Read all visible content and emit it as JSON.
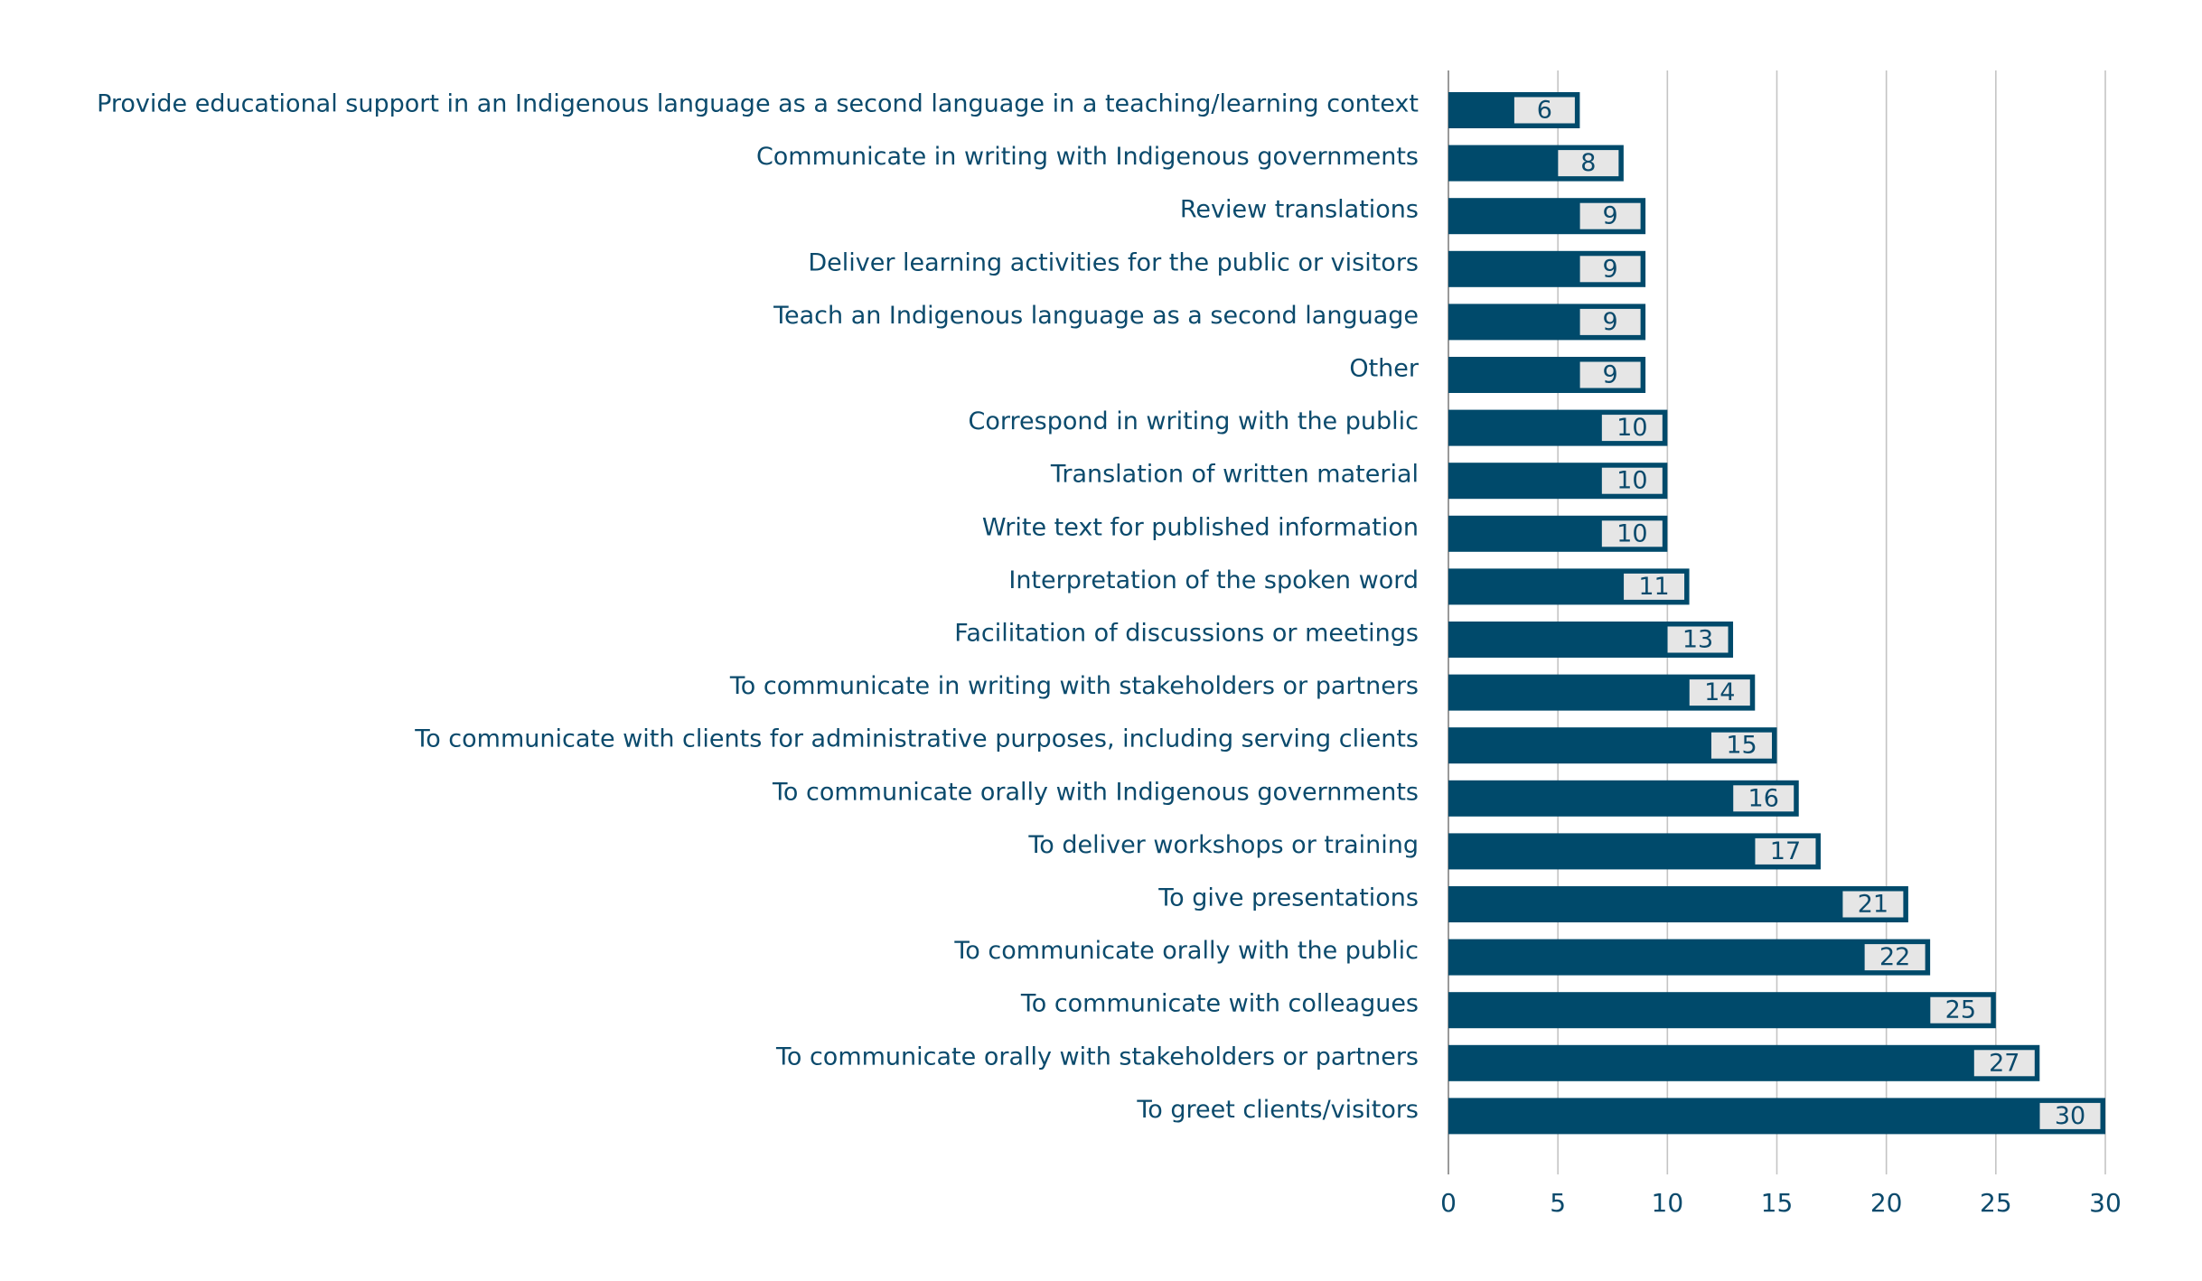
{
  "chart_data": {
    "type": "bar",
    "orientation": "horizontal",
    "title": "",
    "xlabel": "",
    "ylabel": "",
    "xlim": [
      0,
      30
    ],
    "x_ticks": [
      0,
      5,
      10,
      15,
      20,
      25,
      30
    ],
    "grid": "vertical",
    "legend": "none",
    "categories": [
      "Provide educational support in an Indigenous language as a second language in a teaching/learning context",
      "Communicate in writing with Indigenous governments",
      "Review translations",
      "Deliver learning activities for the public or visitors",
      "Teach an Indigenous language as a second language",
      "Other",
      "Correspond in writing with the public",
      "Translation of written material",
      "Write text for published information",
      "Interpretation of the spoken word",
      "Facilitation of discussions or meetings",
      "To communicate in writing with stakeholders or partners",
      "To communicate with clients for administrative purposes, including serving clients",
      "To communicate orally with Indigenous governments",
      "To deliver workshops or training",
      "To give presentations",
      "To communicate orally with the public",
      "To communicate with colleagues",
      "To communicate orally with stakeholders or partners",
      "To greet clients/visitors"
    ],
    "values": [
      6,
      8,
      9,
      9,
      9,
      9,
      10,
      10,
      10,
      11,
      13,
      14,
      15,
      16,
      17,
      21,
      22,
      25,
      27,
      30
    ],
    "colors": {
      "bar": "#004a6b",
      "label_box": "#e6e6e6",
      "text": "#0b4a6c",
      "grid": "#c4c4c4",
      "axis": "#9a9a9a"
    }
  }
}
